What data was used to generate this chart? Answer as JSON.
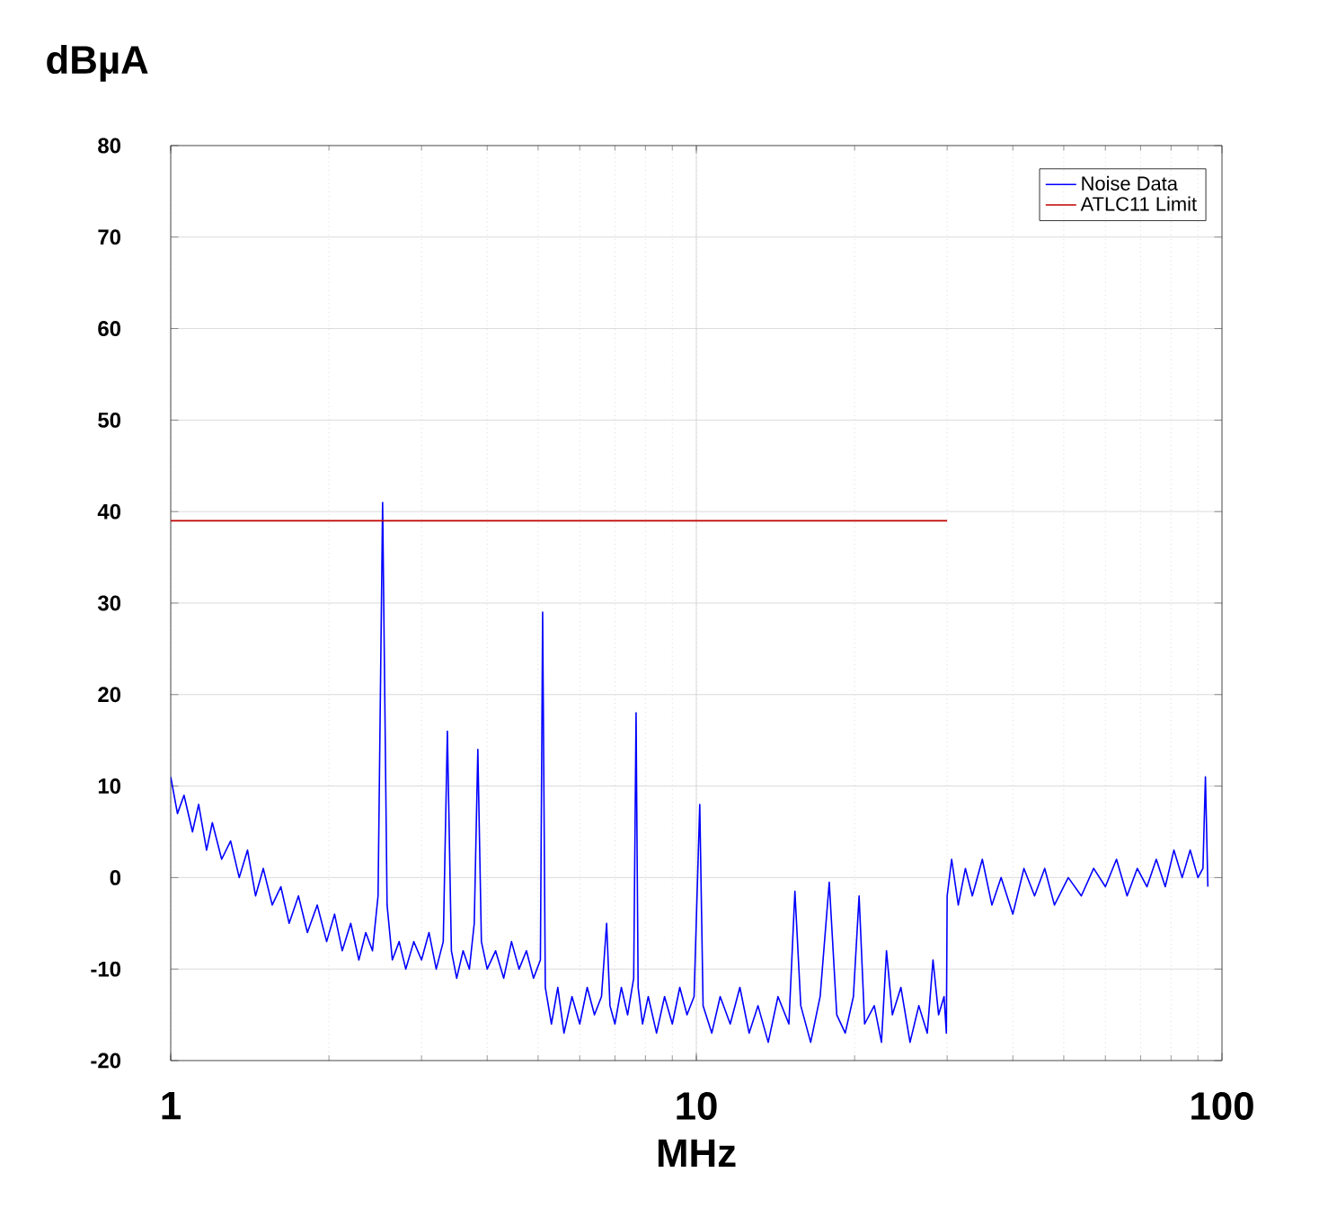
{
  "chart_data": {
    "type": "line",
    "xlabel": "MHz",
    "ylabel": "dBµA",
    "log": "x",
    "xlim": [
      1,
      100
    ],
    "xticks": [
      1,
      10,
      100
    ],
    "ylim": [
      -20,
      80
    ],
    "yticks": [
      -20,
      -10,
      0,
      10,
      20,
      30,
      40,
      50,
      60,
      70,
      80
    ],
    "grid": true,
    "legend": "top right",
    "marker": "none",
    "line_style": "solid",
    "series": [
      {
        "name": "Noise Data",
        "color": "#0000ff",
        "x": [
          1.0,
          1.03,
          1.06,
          1.1,
          1.13,
          1.17,
          1.2,
          1.25,
          1.3,
          1.35,
          1.4,
          1.45,
          1.5,
          1.56,
          1.62,
          1.68,
          1.75,
          1.82,
          1.9,
          1.98,
          2.05,
          2.12,
          2.2,
          2.28,
          2.35,
          2.42,
          2.48,
          2.53,
          2.58,
          2.64,
          2.72,
          2.8,
          2.9,
          3.0,
          3.1,
          3.2,
          3.3,
          3.36,
          3.42,
          3.5,
          3.6,
          3.7,
          3.78,
          3.84,
          3.9,
          4.0,
          4.15,
          4.3,
          4.45,
          4.6,
          4.75,
          4.9,
          5.05,
          5.1,
          5.16,
          5.3,
          5.45,
          5.6,
          5.8,
          6.0,
          6.2,
          6.4,
          6.6,
          6.75,
          6.85,
          7.0,
          7.2,
          7.4,
          7.6,
          7.68,
          7.75,
          7.9,
          8.1,
          8.4,
          8.7,
          9.0,
          9.3,
          9.6,
          9.9,
          10.15,
          10.3,
          10.7,
          11.1,
          11.6,
          12.1,
          12.6,
          13.1,
          13.7,
          14.3,
          15.0,
          15.4,
          15.8,
          16.5,
          17.2,
          17.9,
          18.5,
          19.2,
          19.9,
          20.4,
          20.9,
          21.8,
          22.5,
          23.0,
          23.6,
          24.5,
          25.5,
          26.5,
          27.5,
          28.2,
          28.9,
          29.6,
          29.9,
          30.0,
          30.6,
          31.5,
          32.5,
          33.5,
          35,
          36.5,
          38,
          40,
          42,
          44,
          46,
          48,
          51,
          54,
          57,
          60,
          63,
          66,
          69,
          72,
          75,
          78,
          81,
          84,
          87,
          90,
          92,
          93,
          94
        ],
        "values": [
          11,
          7,
          9,
          5,
          8,
          3,
          6,
          2,
          4,
          0,
          3,
          -2,
          1,
          -3,
          -1,
          -5,
          -2,
          -6,
          -3,
          -7,
          -4,
          -8,
          -5,
          -9,
          -6,
          -8,
          -2,
          41,
          -3,
          -9,
          -7,
          -10,
          -7,
          -9,
          -6,
          -10,
          -7,
          16,
          -8,
          -11,
          -8,
          -10,
          -5,
          14,
          -7,
          -10,
          -8,
          -11,
          -7,
          -10,
          -8,
          -11,
          -9,
          29,
          -12,
          -16,
          -12,
          -17,
          -13,
          -16,
          -12,
          -15,
          -13,
          -5,
          -14,
          -16,
          -12,
          -15,
          -11,
          18,
          -12,
          -16,
          -13,
          -17,
          -13,
          -16,
          -12,
          -15,
          -13,
          8,
          -14,
          -17,
          -13,
          -16,
          -12,
          -17,
          -14,
          -18,
          -13,
          -16,
          -1.5,
          -14,
          -18,
          -13,
          -0.5,
          -15,
          -17,
          -13,
          -2,
          -16,
          -14,
          -18,
          -8,
          -15,
          -12,
          -18,
          -14,
          -17,
          -9,
          -15,
          -13,
          -17,
          -2,
          2,
          -3,
          1,
          -2,
          2,
          -3,
          0,
          -4,
          1,
          -2,
          1,
          -3,
          0,
          -2,
          1,
          -1,
          2,
          -2,
          1,
          -1,
          2,
          -1,
          3,
          0,
          3,
          0,
          1,
          11,
          -1
        ]
      },
      {
        "name": "ATLC11 Limit",
        "color": "#c00000",
        "x": [
          1,
          30
        ],
        "values": [
          39,
          39
        ]
      }
    ]
  }
}
